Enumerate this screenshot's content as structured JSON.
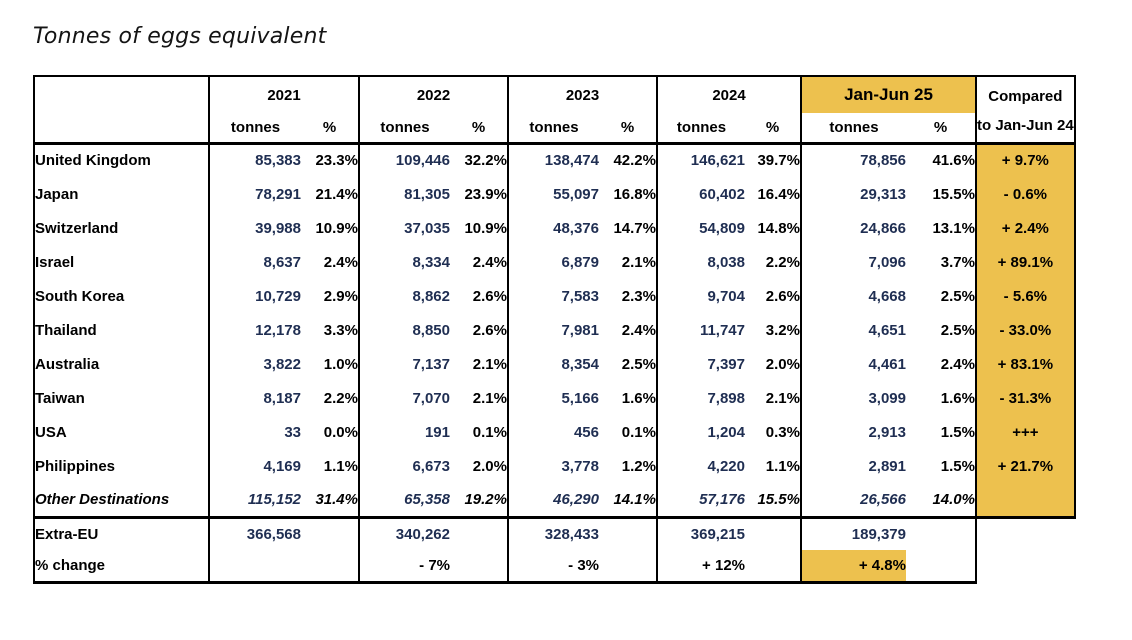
{
  "title": "Tonnes of eggs equivalent",
  "colors": {
    "highlight_yellow": "#EDC14E",
    "tonnes_text_navy": "#1F2E52",
    "border_black": "#000000",
    "background": "#FFFFFF"
  },
  "table": {
    "year_headers": [
      "2021",
      "2022",
      "2023",
      "2024",
      "Jan-Jun 25"
    ],
    "subheader": {
      "tonnes": "tonnes",
      "pct": "%"
    },
    "compared_header_line1": "Compared",
    "compared_header_line2": "to Jan-Jun 24",
    "rows": [
      {
        "label": "United Kingdom",
        "italic": false,
        "values": [
          [
            "85,383",
            "23.3%"
          ],
          [
            "109,446",
            "32.2%"
          ],
          [
            "138,474",
            "42.2%"
          ],
          [
            "146,621",
            "39.7%"
          ],
          [
            "78,856",
            "41.6%"
          ]
        ],
        "compared": "+ 9.7%"
      },
      {
        "label": "Japan",
        "italic": false,
        "values": [
          [
            "78,291",
            "21.4%"
          ],
          [
            "81,305",
            "23.9%"
          ],
          [
            "55,097",
            "16.8%"
          ],
          [
            "60,402",
            "16.4%"
          ],
          [
            "29,313",
            "15.5%"
          ]
        ],
        "compared": "- 0.6%"
      },
      {
        "label": "Switzerland",
        "italic": false,
        "values": [
          [
            "39,988",
            "10.9%"
          ],
          [
            "37,035",
            "10.9%"
          ],
          [
            "48,376",
            "14.7%"
          ],
          [
            "54,809",
            "14.8%"
          ],
          [
            "24,866",
            "13.1%"
          ]
        ],
        "compared": "+ 2.4%"
      },
      {
        "label": "Israel",
        "italic": false,
        "values": [
          [
            "8,637",
            "2.4%"
          ],
          [
            "8,334",
            "2.4%"
          ],
          [
            "6,879",
            "2.1%"
          ],
          [
            "8,038",
            "2.2%"
          ],
          [
            "7,096",
            "3.7%"
          ]
        ],
        "compared": "+ 89.1%"
      },
      {
        "label": "South Korea",
        "italic": false,
        "values": [
          [
            "10,729",
            "2.9%"
          ],
          [
            "8,862",
            "2.6%"
          ],
          [
            "7,583",
            "2.3%"
          ],
          [
            "9,704",
            "2.6%"
          ],
          [
            "4,668",
            "2.5%"
          ]
        ],
        "compared": "- 5.6%"
      },
      {
        "label": "Thailand",
        "italic": false,
        "values": [
          [
            "12,178",
            "3.3%"
          ],
          [
            "8,850",
            "2.6%"
          ],
          [
            "7,981",
            "2.4%"
          ],
          [
            "11,747",
            "3.2%"
          ],
          [
            "4,651",
            "2.5%"
          ]
        ],
        "compared": "- 33.0%"
      },
      {
        "label": "Australia",
        "italic": false,
        "values": [
          [
            "3,822",
            "1.0%"
          ],
          [
            "7,137",
            "2.1%"
          ],
          [
            "8,354",
            "2.5%"
          ],
          [
            "7,397",
            "2.0%"
          ],
          [
            "4,461",
            "2.4%"
          ]
        ],
        "compared": "+ 83.1%"
      },
      {
        "label": "Taiwan",
        "italic": false,
        "values": [
          [
            "8,187",
            "2.2%"
          ],
          [
            "7,070",
            "2.1%"
          ],
          [
            "5,166",
            "1.6%"
          ],
          [
            "7,898",
            "2.1%"
          ],
          [
            "3,099",
            "1.6%"
          ]
        ],
        "compared": "- 31.3%"
      },
      {
        "label": "USA",
        "italic": false,
        "values": [
          [
            "33",
            "0.0%"
          ],
          [
            "191",
            "0.1%"
          ],
          [
            "456",
            "0.1%"
          ],
          [
            "1,204",
            "0.3%"
          ],
          [
            "2,913",
            "1.5%"
          ]
        ],
        "compared": "+++"
      },
      {
        "label": "Philippines",
        "italic": false,
        "values": [
          [
            "4,169",
            "1.1%"
          ],
          [
            "6,673",
            "2.0%"
          ],
          [
            "3,778",
            "1.2%"
          ],
          [
            "4,220",
            "1.1%"
          ],
          [
            "2,891",
            "1.5%"
          ]
        ],
        "compared": "+ 21.7%"
      },
      {
        "label": "Other Destinations",
        "italic": true,
        "values": [
          [
            "115,152",
            "31.4%"
          ],
          [
            "65,358",
            "19.2%"
          ],
          [
            "46,290",
            "14.1%"
          ],
          [
            "57,176",
            "15.5%"
          ],
          [
            "26,566",
            "14.0%"
          ]
        ],
        "compared": ""
      }
    ],
    "footer": [
      {
        "label": "Extra-EU",
        "values": [
          "366,568",
          "340,262",
          "328,433",
          "369,215",
          "189,379"
        ],
        "navy": true,
        "highlight_cols": []
      },
      {
        "label": "% change",
        "values": [
          "",
          "- 7%",
          "- 3%",
          "+ 12%",
          "+ 4.8%"
        ],
        "navy": false,
        "highlight_cols": [
          4
        ]
      }
    ]
  }
}
